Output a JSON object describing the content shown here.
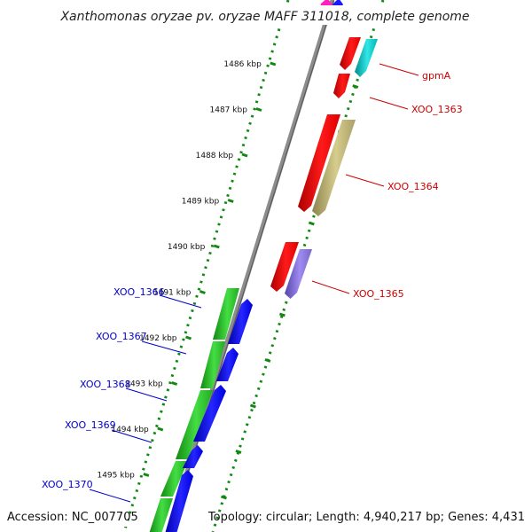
{
  "title": "Xanthomonas oryzae pv. oryzae MAFF 311018, complete genome",
  "footer": {
    "accession": "Accession: NC_007705",
    "stats": "Topology: circular; Length: 4,940,217 bp; Genes: 4,431"
  },
  "colors": {
    "backbone": "#8c8c8c",
    "tick_track": "#118811",
    "label_forward": "#cc0000",
    "label_reverse": "#0000cc"
  },
  "ticks": [
    "1486 kbp",
    "1487 kbp",
    "1488 kbp",
    "1489 kbp",
    "1490 kbp",
    "1491 kbp",
    "1492 kbp",
    "1493 kbp",
    "1494 kbp",
    "1495 kbp"
  ],
  "gene_labels": [
    {
      "text": "gpmA",
      "strand": "forward"
    },
    {
      "text": "XOO_1363",
      "strand": "forward"
    },
    {
      "text": "XOO_1364",
      "strand": "forward"
    },
    {
      "text": "XOO_1365",
      "strand": "forward"
    },
    {
      "text": "XOO_1366",
      "strand": "reverse"
    },
    {
      "text": "XOO_1367",
      "strand": "reverse"
    },
    {
      "text": "XOO_1368",
      "strand": "reverse"
    },
    {
      "text": "XOO_1369",
      "strand": "reverse"
    },
    {
      "text": "XOO_1370",
      "strand": "reverse"
    }
  ]
}
